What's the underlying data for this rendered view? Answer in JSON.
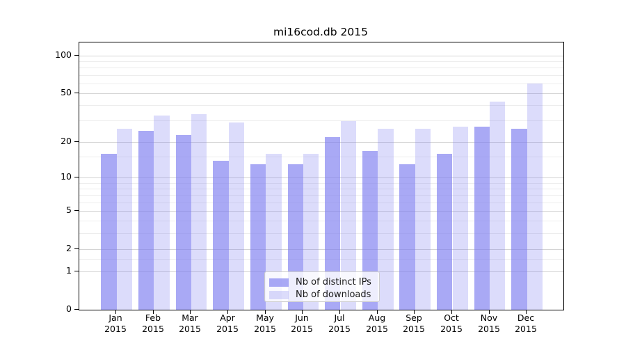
{
  "chart_data": {
    "type": "bar",
    "title": "mi16cod.db 2015",
    "categories": [
      "Jan",
      "Feb",
      "Mar",
      "Apr",
      "May",
      "Jun",
      "Jul",
      "Aug",
      "Sep",
      "Oct",
      "Nov",
      "Dec"
    ],
    "category_year": "2015",
    "series": [
      {
        "name": "Nb of distinct IPs",
        "color": "rgba(120,120,240,0.64)",
        "values": [
          16,
          25,
          23,
          14,
          13,
          13,
          22,
          17,
          13,
          16,
          27,
          26
        ]
      },
      {
        "name": "Nb of downloads",
        "color": "rgba(120,120,240,0.26)",
        "values": [
          26,
          33,
          34,
          29,
          16,
          16,
          30,
          26,
          26,
          27,
          43,
          60
        ]
      }
    ],
    "y_axis": {
      "scale": "log10(1+value)",
      "tick_values": [
        0,
        1,
        2,
        5,
        10,
        20,
        50,
        100
      ],
      "minor_grid_values": [
        1.5,
        3,
        4,
        6,
        7,
        8,
        9,
        15,
        30,
        40,
        60,
        70,
        80,
        90
      ],
      "range": [
        0,
        100
      ]
    },
    "legend": {
      "position": "lower center"
    },
    "grid": true
  },
  "colors": {
    "major_grid": "#d4d4d4",
    "minor_grid": "#ededed",
    "axis": "#000000",
    "text": "#1a1a1a"
  }
}
